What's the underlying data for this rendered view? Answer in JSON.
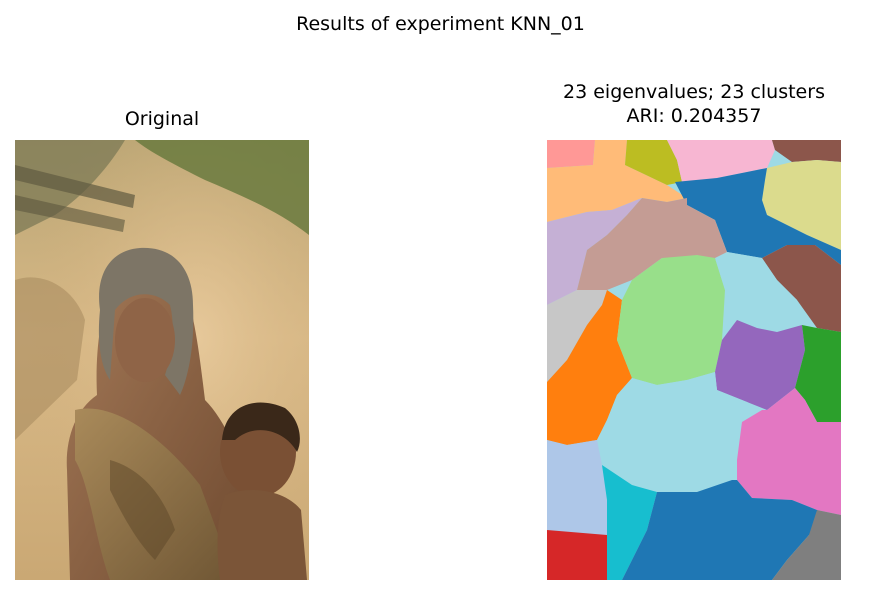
{
  "figure": {
    "suptitle": "Results of experiment KNN_01"
  },
  "left_panel": {
    "title": "Original"
  },
  "right_panel": {
    "title_line1": "23 eigenvalues; 23 clusters",
    "title_line2": "ARI: 0.204357"
  },
  "segmentation_palette": {
    "blue": "#1f77b4",
    "orange": "#ff7f0e",
    "green": "#2ca02c",
    "red": "#d62728",
    "purple": "#9467bd",
    "brown": "#8c564b",
    "pink": "#e377c2",
    "gray": "#7f7f7f",
    "olive": "#bcbd22",
    "cyan": "#17becf",
    "light_blue": "#aec7e8",
    "light_orange": "#ffbb78",
    "light_green": "#98df8a",
    "light_red": "#ff9896",
    "light_purple": "#c5b0d5",
    "light_brown": "#c49c94",
    "light_pink": "#f7b6d2",
    "light_gray": "#c7c7c7",
    "light_olive": "#dbdb8d",
    "light_cyan": "#9edae5"
  }
}
